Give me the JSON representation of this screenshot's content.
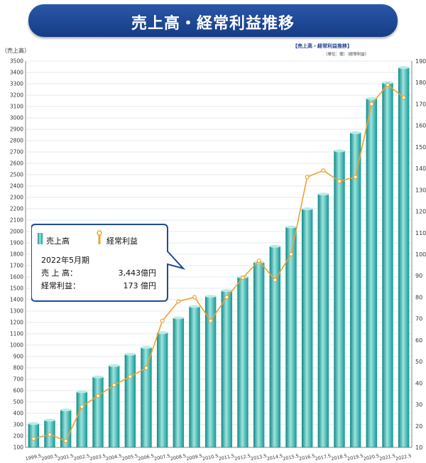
{
  "header": {
    "title": "売上高・経常利益推移"
  },
  "legend_box": {
    "title": "【売上高・経常利益推移】",
    "unit": "（単位：億）（経常利益）"
  },
  "y_left_label": "（売上高）",
  "callout": {
    "bar_label": "売上高",
    "line_label": "経常利益",
    "period": "2022年5月期",
    "sales_label": "売 上 高：",
    "sales_value": "3,443億円",
    "profit_label": "経常利益：",
    "profit_value": "173 億円"
  },
  "colors": {
    "bar": "#1aa39b",
    "line": "#f0a030",
    "banner": "#1e4a9a"
  },
  "chart_data": {
    "type": "bar",
    "title": "売上高・経常利益推移",
    "categories": [
      "1999.5",
      "2000.5",
      "2001.5",
      "2002.5",
      "2003.5",
      "2004.5",
      "2005.5",
      "2006.5",
      "2007.5",
      "2008.5",
      "2009.5",
      "2010.5",
      "2011.5",
      "2012.5",
      "2013.5",
      "2014.5",
      "2015.5",
      "2016.5",
      "2017.5",
      "2018.5",
      "2019.5",
      "2020.5",
      "2021.5",
      "2022.5"
    ],
    "series": [
      {
        "name": "売上高",
        "axis": "left",
        "values": [
          310,
          340,
          430,
          590,
          720,
          820,
          920,
          980,
          1110,
          1240,
          1340,
          1430,
          1480,
          1600,
          1730,
          1870,
          2040,
          2200,
          2330,
          2710,
          2870,
          3170,
          3310,
          3443
        ]
      },
      {
        "name": "経常利益",
        "axis": "right",
        "values": [
          14,
          16,
          13,
          29,
          34,
          39,
          43,
          47,
          69,
          78,
          80,
          69,
          80,
          89,
          97,
          88,
          100,
          136,
          139,
          134,
          136,
          170,
          179,
          173
        ]
      }
    ],
    "ylim_left": [
      100,
      3500
    ],
    "ylim_right": [
      10,
      190
    ],
    "y_left_ticks": [
      100,
      200,
      300,
      400,
      500,
      600,
      700,
      800,
      900,
      1000,
      1100,
      1200,
      1300,
      1400,
      1500,
      1600,
      1700,
      1800,
      1900,
      2000,
      2100,
      2200,
      2300,
      2400,
      2500,
      2600,
      2700,
      2800,
      2900,
      3000,
      3100,
      3200,
      3300,
      3400,
      3500
    ],
    "y_right_ticks": [
      10,
      20,
      30,
      40,
      50,
      60,
      70,
      80,
      90,
      100,
      110,
      120,
      130,
      140,
      150,
      160,
      170,
      180,
      190
    ],
    "grid": true
  }
}
